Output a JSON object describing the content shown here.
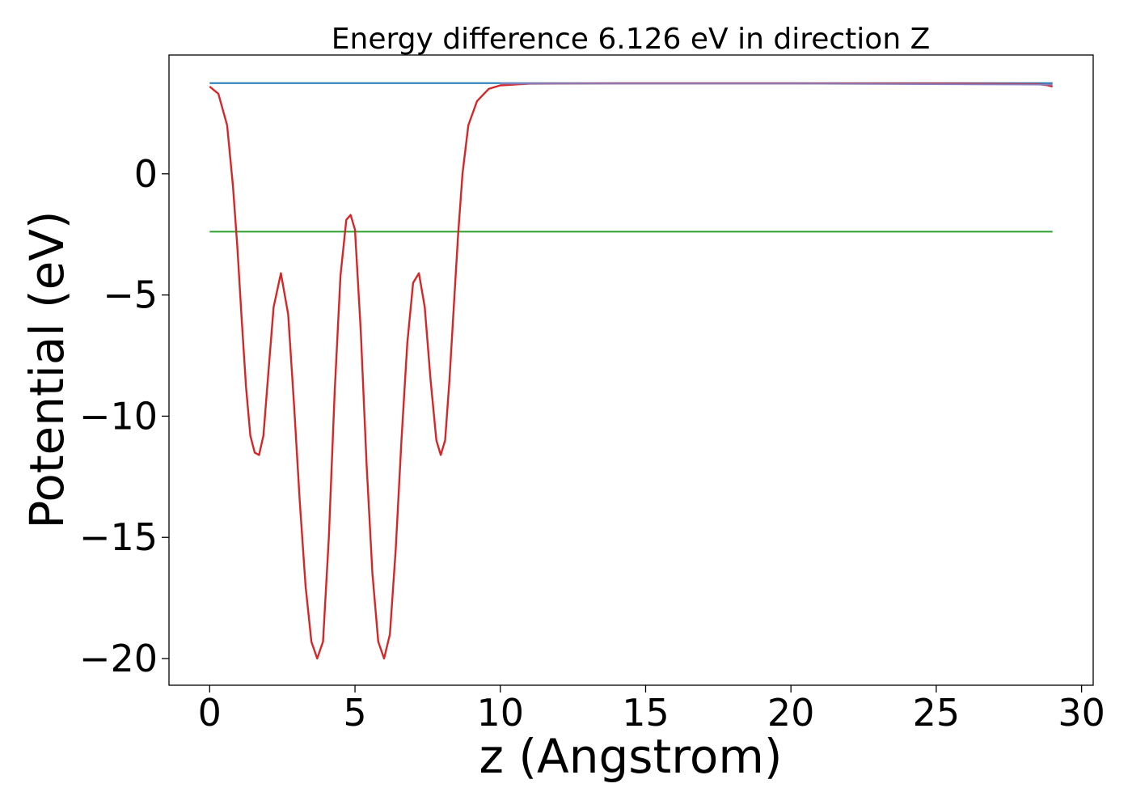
{
  "chart_data": {
    "type": "line",
    "title": "Energy difference 6.126 eV in direction Z",
    "xlabel": "z (Angstrom)",
    "ylabel": "Potential (eV)",
    "xlim": [
      -1.4,
      30.4
    ],
    "ylim": [
      -21.1,
      4.9
    ],
    "x_ticks": [
      0,
      5,
      10,
      15,
      20,
      25,
      30
    ],
    "y_ticks": [
      0,
      -5,
      -10,
      -15,
      -20
    ],
    "x_tick_labels": [
      "0",
      "5",
      "10",
      "15",
      "20",
      "25",
      "30"
    ],
    "y_tick_labels": [
      "0",
      "−5",
      "−10",
      "−15",
      "−20"
    ],
    "grid": false,
    "legend": false,
    "series": [
      {
        "color": "#1f77b4",
        "x": [
          0,
          29
        ],
        "y": [
          3.74,
          3.74
        ]
      },
      {
        "color": "#2ca02c",
        "x": [
          0,
          29
        ],
        "y": [
          -2.39,
          -2.39
        ]
      },
      {
        "color": "#d62728",
        "x": [
          0.0,
          0.3,
          0.6,
          0.8,
          0.95,
          1.1,
          1.25,
          1.4,
          1.55,
          1.7,
          1.85,
          2.0,
          2.2,
          2.45,
          2.7,
          2.9,
          3.1,
          3.3,
          3.5,
          3.7,
          3.9,
          4.1,
          4.3,
          4.5,
          4.7,
          4.85,
          5.0,
          5.2,
          5.4,
          5.6,
          5.8,
          6.0,
          6.2,
          6.4,
          6.6,
          6.8,
          7.0,
          7.2,
          7.4,
          7.6,
          7.8,
          7.95,
          8.1,
          8.25,
          8.4,
          8.55,
          8.7,
          8.9,
          9.2,
          9.6,
          10.0,
          11.0,
          14.0,
          20.0,
          26.0,
          28.5,
          28.8,
          29.0
        ],
        "y": [
          3.6,
          3.3,
          2.0,
          -0.5,
          -3.0,
          -6.0,
          -8.8,
          -10.8,
          -11.5,
          -11.6,
          -10.8,
          -8.5,
          -5.5,
          -4.1,
          -5.8,
          -9.5,
          -13.5,
          -17.0,
          -19.3,
          -20.0,
          -19.3,
          -15.0,
          -9.0,
          -4.2,
          -1.9,
          -1.7,
          -2.3,
          -6.5,
          -12.0,
          -16.5,
          -19.3,
          -20.0,
          -19.0,
          -15.5,
          -11.0,
          -7.0,
          -4.5,
          -4.1,
          -5.5,
          -8.5,
          -11.0,
          -11.6,
          -11.0,
          -8.5,
          -5.5,
          -2.5,
          0.0,
          2.0,
          3.0,
          3.5,
          3.65,
          3.72,
          3.73,
          3.73,
          3.72,
          3.7,
          3.66,
          3.6
        ]
      },
      {
        "color": "#8c7fbf",
        "x": [
          10,
          20,
          29
        ],
        "y": [
          3.72,
          3.72,
          3.68
        ]
      }
    ]
  }
}
